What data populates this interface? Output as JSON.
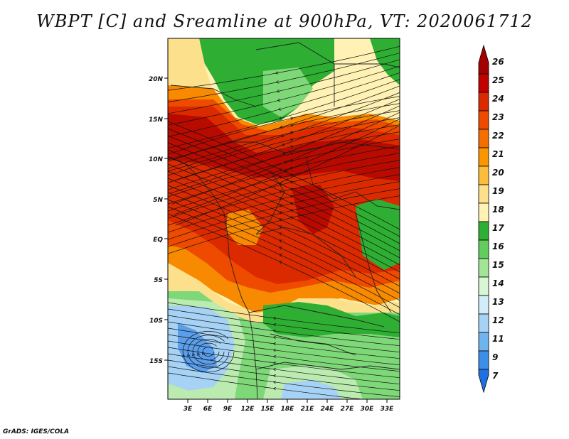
{
  "title": "WBPT [C] and Sreamline at 900hPa, VT: 2020061712",
  "footer": "GrADS: IGES/COLA",
  "lat_labels": [
    "20N",
    "15N",
    "10N",
    "5N",
    "EQ",
    "5S",
    "10S",
    "15S"
  ],
  "lon_labels": [
    "3E",
    "6E",
    "9E",
    "12E",
    "15E",
    "18E",
    "21E",
    "24E",
    "27E",
    "30E",
    "33E"
  ],
  "colorbar": {
    "labels": [
      "26",
      "25",
      "24",
      "23",
      "22",
      "21",
      "20",
      "19",
      "18",
      "17",
      "16",
      "15",
      "14",
      "13",
      "12",
      "11",
      "9",
      "7"
    ],
    "colors": [
      "#a50000",
      "#c30000",
      "#dc2a00",
      "#ee4a00",
      "#f56e00",
      "#fa9600",
      "#fcbd3c",
      "#fde08c",
      "#fff2b4",
      "#2eae32",
      "#62cc5c",
      "#a2e596",
      "#d8f5d4",
      "#d2ecfa",
      "#a5d2f5",
      "#6fb4ef",
      "#3c8ee8",
      "#1f6fe0"
    ]
  },
  "colors": {
    "dark_red": "#b90a00",
    "red": "#dc2a00",
    "orange_red": "#ee4a00",
    "orange": "#f78a00",
    "yellow": "#fde08c",
    "pale_yellow": "#fff2b4",
    "green": "#2eae32",
    "light_green": "#7ed878",
    "pale_green": "#bcebb0",
    "light_blue": "#a5d2f5",
    "blue": "#5a9eec"
  }
}
